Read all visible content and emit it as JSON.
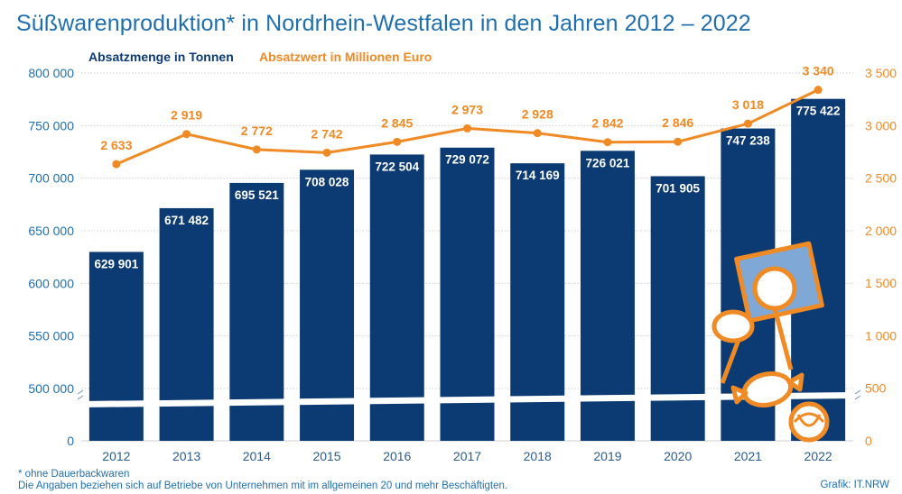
{
  "title": "Süßwarenproduktion* in Nordrhein-Westfalen in den Jahren 2012 – 2022",
  "footnote_1": "* ohne Dauerbackwaren",
  "footnote_2": "Die Angaben beziehen sich auf Betriebe von Unternehmen mit im allgemeinen 20 und mehr Beschäftigten.",
  "credit": "Grafik: IT.NRW",
  "colors": {
    "bar": "#0c3b73",
    "line": "#f08a24",
    "title": "#1f6fae",
    "axis_left": "#1f6fae",
    "axis_right": "#f08a24",
    "grid": "#cfcfcf"
  },
  "chart_data": {
    "type": "bar+line",
    "categories": [
      "2012",
      "2013",
      "2014",
      "2015",
      "2016",
      "2017",
      "2018",
      "2019",
      "2020",
      "2021",
      "2022"
    ],
    "series": [
      {
        "name": "Absatzmenge in Tonnen",
        "type": "bar",
        "axis": "left",
        "values": [
          629901,
          671482,
          695521,
          708028,
          722504,
          729072,
          714169,
          726021,
          701905,
          747238,
          775422
        ],
        "labels": [
          "629 901",
          "671 482",
          "695 521",
          "708 028",
          "722 504",
          "729 072",
          "714 169",
          "726 021",
          "701 905",
          "747 238",
          "775 422"
        ]
      },
      {
        "name": "Absatzwert in Millionen Euro",
        "type": "line",
        "axis": "right",
        "values": [
          2633,
          2919,
          2772,
          2742,
          2845,
          2973,
          2928,
          2842,
          2846,
          3018,
          3340
        ],
        "labels": [
          "2 633",
          "2 919",
          "2 772",
          "2 742",
          "2 845",
          "2 973",
          "2 928",
          "2 842",
          "2 846",
          "3 018",
          "3 340"
        ]
      }
    ],
    "y_left": {
      "axis_break": true,
      "ticks": [
        0,
        500000,
        550000,
        600000,
        650000,
        700000,
        750000,
        800000
      ],
      "tick_labels": [
        "0",
        "500 000",
        "550 000",
        "600 000",
        "650 000",
        "700 000",
        "750 000",
        "800 000"
      ],
      "range": [
        475000,
        800000
      ]
    },
    "y_right": {
      "ticks": [
        0,
        500,
        1000,
        1500,
        2000,
        2500,
        3000,
        3500
      ],
      "tick_labels": [
        "0",
        "500",
        "1 000",
        "1 500",
        "2 000",
        "2 500",
        "3 000",
        "3 500"
      ],
      "range": [
        0,
        3500
      ]
    },
    "grid": true,
    "legend_position": "top-left"
  }
}
